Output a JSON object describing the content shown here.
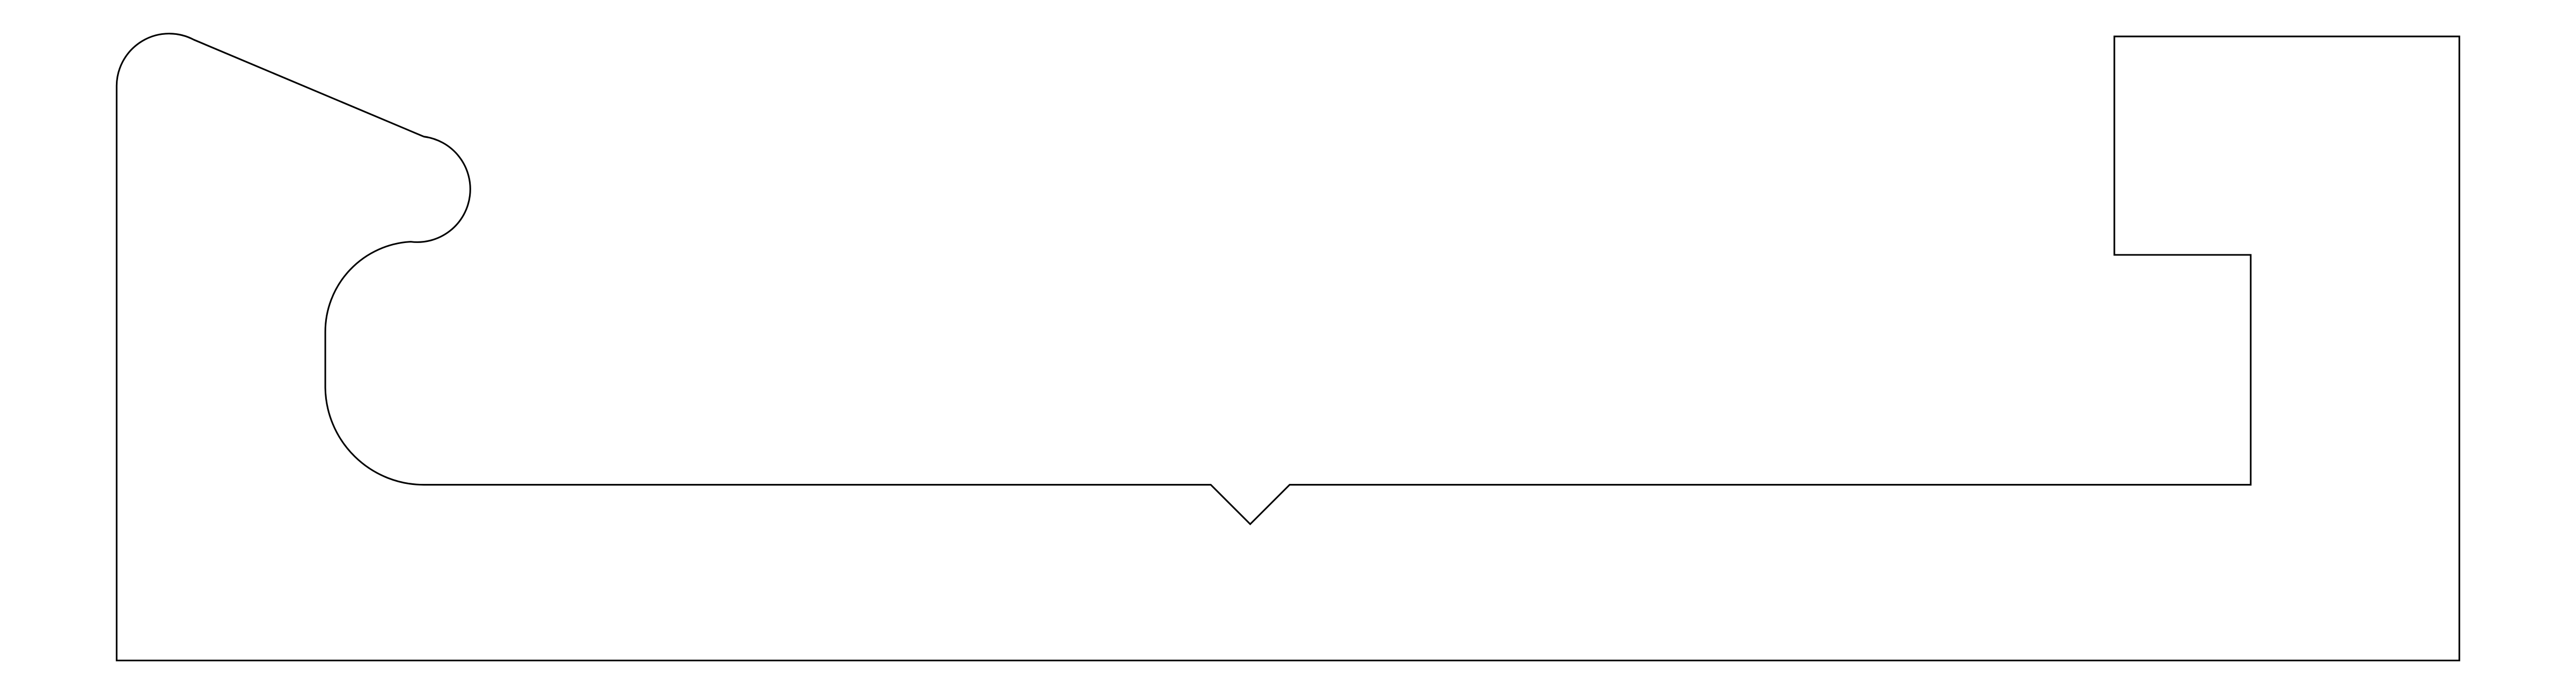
{
  "drawing": {
    "background_color": "#ffffff",
    "line_color": "#000000",
    "shapes": [
      "profile-outline"
    ]
  }
}
